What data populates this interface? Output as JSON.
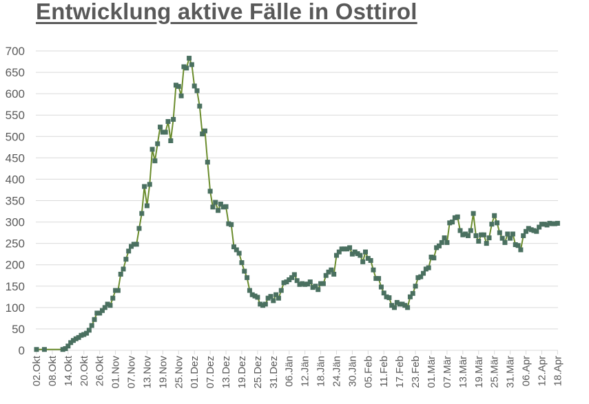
{
  "title": "Entwicklung aktive Fälle in Osttirol",
  "colors": {
    "line": "#6a8c2c",
    "marker": "#4a7060",
    "grid": "#d9d9d9",
    "axis": "#d9d9d9",
    "text": "#595959",
    "title": "#595959"
  },
  "chart_data": {
    "type": "line",
    "title": "Entwicklung aktive Fälle in Osttirol",
    "xlabel": "",
    "ylabel": "",
    "ylim": [
      0,
      700
    ],
    "yticks": [
      0,
      50,
      100,
      150,
      200,
      250,
      300,
      350,
      400,
      450,
      500,
      550,
      600,
      650,
      700
    ],
    "grid": true,
    "legend": "none",
    "x_start": "02.Okt",
    "x_end": "18.Apr",
    "x_tick_interval_days": 6,
    "xtick_labels": [
      "02.Okt",
      "08.Okt",
      "14.Okt",
      "20.Okt",
      "26.Okt",
      "01.Nov",
      "07.Nov",
      "13.Nov",
      "19.Nov",
      "25.Nov",
      "01.Dez",
      "07.Dez",
      "13.Dez",
      "19.Dez",
      "25.Dez",
      "31.Dez",
      "06.Jän",
      "12.Jän",
      "18.Jän",
      "24.Jän",
      "30.Jän",
      "05.Feb",
      "11.Feb",
      "17.Feb",
      "23.Feb",
      "01.Mär",
      "07.Mär",
      "13.Mär",
      "19.Mär",
      "25.Mär",
      "31.Mär",
      "06.Apr",
      "12.Apr",
      "18.Apr"
    ],
    "series": [
      {
        "name": "Aktive Fälle",
        "points": [
          [
            0,
            2
          ],
          [
            3,
            2
          ],
          [
            10,
            2
          ],
          [
            11,
            4
          ],
          [
            12,
            10
          ],
          [
            13,
            18
          ],
          [
            14,
            23
          ],
          [
            15,
            27
          ],
          [
            16,
            30
          ],
          [
            17,
            35
          ],
          [
            18,
            37
          ],
          [
            19,
            40
          ],
          [
            20,
            47
          ],
          [
            21,
            58
          ],
          [
            22,
            72
          ],
          [
            23,
            87
          ],
          [
            24,
            87
          ],
          [
            25,
            93
          ],
          [
            26,
            100
          ],
          [
            27,
            108
          ],
          [
            28,
            105
          ],
          [
            29,
            122
          ],
          [
            30,
            140
          ],
          [
            31,
            140
          ],
          [
            32,
            178
          ],
          [
            33,
            190
          ],
          [
            34,
            213
          ],
          [
            35,
            232
          ],
          [
            36,
            243
          ],
          [
            37,
            248
          ],
          [
            38,
            248
          ],
          [
            39,
            285
          ],
          [
            40,
            320
          ],
          [
            41,
            383
          ],
          [
            42,
            338
          ],
          [
            43,
            388
          ],
          [
            44,
            470
          ],
          [
            45,
            443
          ],
          [
            46,
            483
          ],
          [
            47,
            522
          ],
          [
            48,
            510
          ],
          [
            49,
            510
          ],
          [
            50,
            535
          ],
          [
            51,
            490
          ],
          [
            52,
            540
          ],
          [
            53,
            620
          ],
          [
            54,
            617
          ],
          [
            55,
            595
          ],
          [
            56,
            663
          ],
          [
            57,
            660
          ],
          [
            58,
            683
          ],
          [
            59,
            668
          ],
          [
            60,
            618
          ],
          [
            61,
            607
          ],
          [
            62,
            571
          ],
          [
            63,
            506
          ],
          [
            64,
            513
          ],
          [
            65,
            440
          ],
          [
            66,
            372
          ],
          [
            67,
            335
          ],
          [
            68,
            346
          ],
          [
            69,
            327
          ],
          [
            70,
            342
          ],
          [
            71,
            335
          ],
          [
            72,
            336
          ],
          [
            73,
            296
          ],
          [
            74,
            294
          ],
          [
            75,
            242
          ],
          [
            76,
            235
          ],
          [
            77,
            227
          ],
          [
            78,
            205
          ],
          [
            79,
            185
          ],
          [
            80,
            170
          ],
          [
            81,
            140
          ],
          [
            82,
            130
          ],
          [
            83,
            127
          ],
          [
            84,
            124
          ],
          [
            85,
            108
          ],
          [
            86,
            105
          ],
          [
            87,
            108
          ],
          [
            88,
            122
          ],
          [
            89,
            126
          ],
          [
            90,
            116
          ],
          [
            91,
            130
          ],
          [
            92,
            122
          ],
          [
            93,
            140
          ],
          [
            94,
            158
          ],
          [
            95,
            160
          ],
          [
            96,
            165
          ],
          [
            97,
            170
          ],
          [
            98,
            177
          ],
          [
            99,
            163
          ],
          [
            100,
            154
          ],
          [
            101,
            156
          ],
          [
            102,
            154
          ],
          [
            103,
            155
          ],
          [
            104,
            160
          ],
          [
            105,
            147
          ],
          [
            106,
            150
          ],
          [
            107,
            142
          ],
          [
            108,
            156
          ],
          [
            109,
            156
          ],
          [
            110,
            175
          ],
          [
            111,
            183
          ],
          [
            112,
            188
          ],
          [
            113,
            178
          ],
          [
            114,
            222
          ],
          [
            115,
            230
          ],
          [
            116,
            237
          ],
          [
            117,
            237
          ],
          [
            118,
            237
          ],
          [
            119,
            240
          ],
          [
            120,
            225
          ],
          [
            121,
            230
          ],
          [
            122,
            226
          ],
          [
            123,
            222
          ],
          [
            124,
            207
          ],
          [
            125,
            230
          ],
          [
            126,
            215
          ],
          [
            127,
            210
          ],
          [
            128,
            188
          ],
          [
            129,
            168
          ],
          [
            130,
            168
          ],
          [
            131,
            148
          ],
          [
            132,
            134
          ],
          [
            133,
            125
          ],
          [
            134,
            123
          ],
          [
            135,
            105
          ],
          [
            136,
            100
          ],
          [
            137,
            112
          ],
          [
            138,
            108
          ],
          [
            139,
            108
          ],
          [
            140,
            105
          ],
          [
            141,
            100
          ],
          [
            142,
            125
          ],
          [
            143,
            133
          ],
          [
            144,
            150
          ],
          [
            145,
            170
          ],
          [
            146,
            172
          ],
          [
            147,
            180
          ],
          [
            148,
            190
          ],
          [
            149,
            193
          ],
          [
            150,
            218
          ],
          [
            151,
            216
          ],
          [
            152,
            240
          ],
          [
            153,
            244
          ],
          [
            154,
            252
          ],
          [
            155,
            263
          ],
          [
            156,
            252
          ],
          [
            157,
            298
          ],
          [
            158,
            300
          ],
          [
            159,
            310
          ],
          [
            160,
            312
          ],
          [
            161,
            280
          ],
          [
            162,
            270
          ],
          [
            163,
            272
          ],
          [
            164,
            268
          ],
          [
            165,
            280
          ],
          [
            166,
            320
          ],
          [
            167,
            268
          ],
          [
            168,
            255
          ],
          [
            169,
            270
          ],
          [
            170,
            270
          ],
          [
            171,
            250
          ],
          [
            172,
            263
          ],
          [
            173,
            295
          ],
          [
            174,
            315
          ],
          [
            175,
            298
          ],
          [
            176,
            275
          ],
          [
            177,
            262
          ],
          [
            178,
            252
          ],
          [
            179,
            272
          ],
          [
            180,
            262
          ],
          [
            181,
            272
          ],
          [
            182,
            247
          ],
          [
            183,
            245
          ],
          [
            184,
            235
          ],
          [
            185,
            268
          ],
          [
            186,
            278
          ],
          [
            187,
            285
          ],
          [
            188,
            282
          ],
          [
            189,
            280
          ],
          [
            190,
            278
          ],
          [
            191,
            288
          ],
          [
            192,
            295
          ],
          [
            193,
            295
          ],
          [
            194,
            293
          ],
          [
            195,
            297
          ],
          [
            196,
            296
          ],
          [
            197,
            296
          ],
          [
            198,
            297
          ]
        ]
      }
    ]
  }
}
